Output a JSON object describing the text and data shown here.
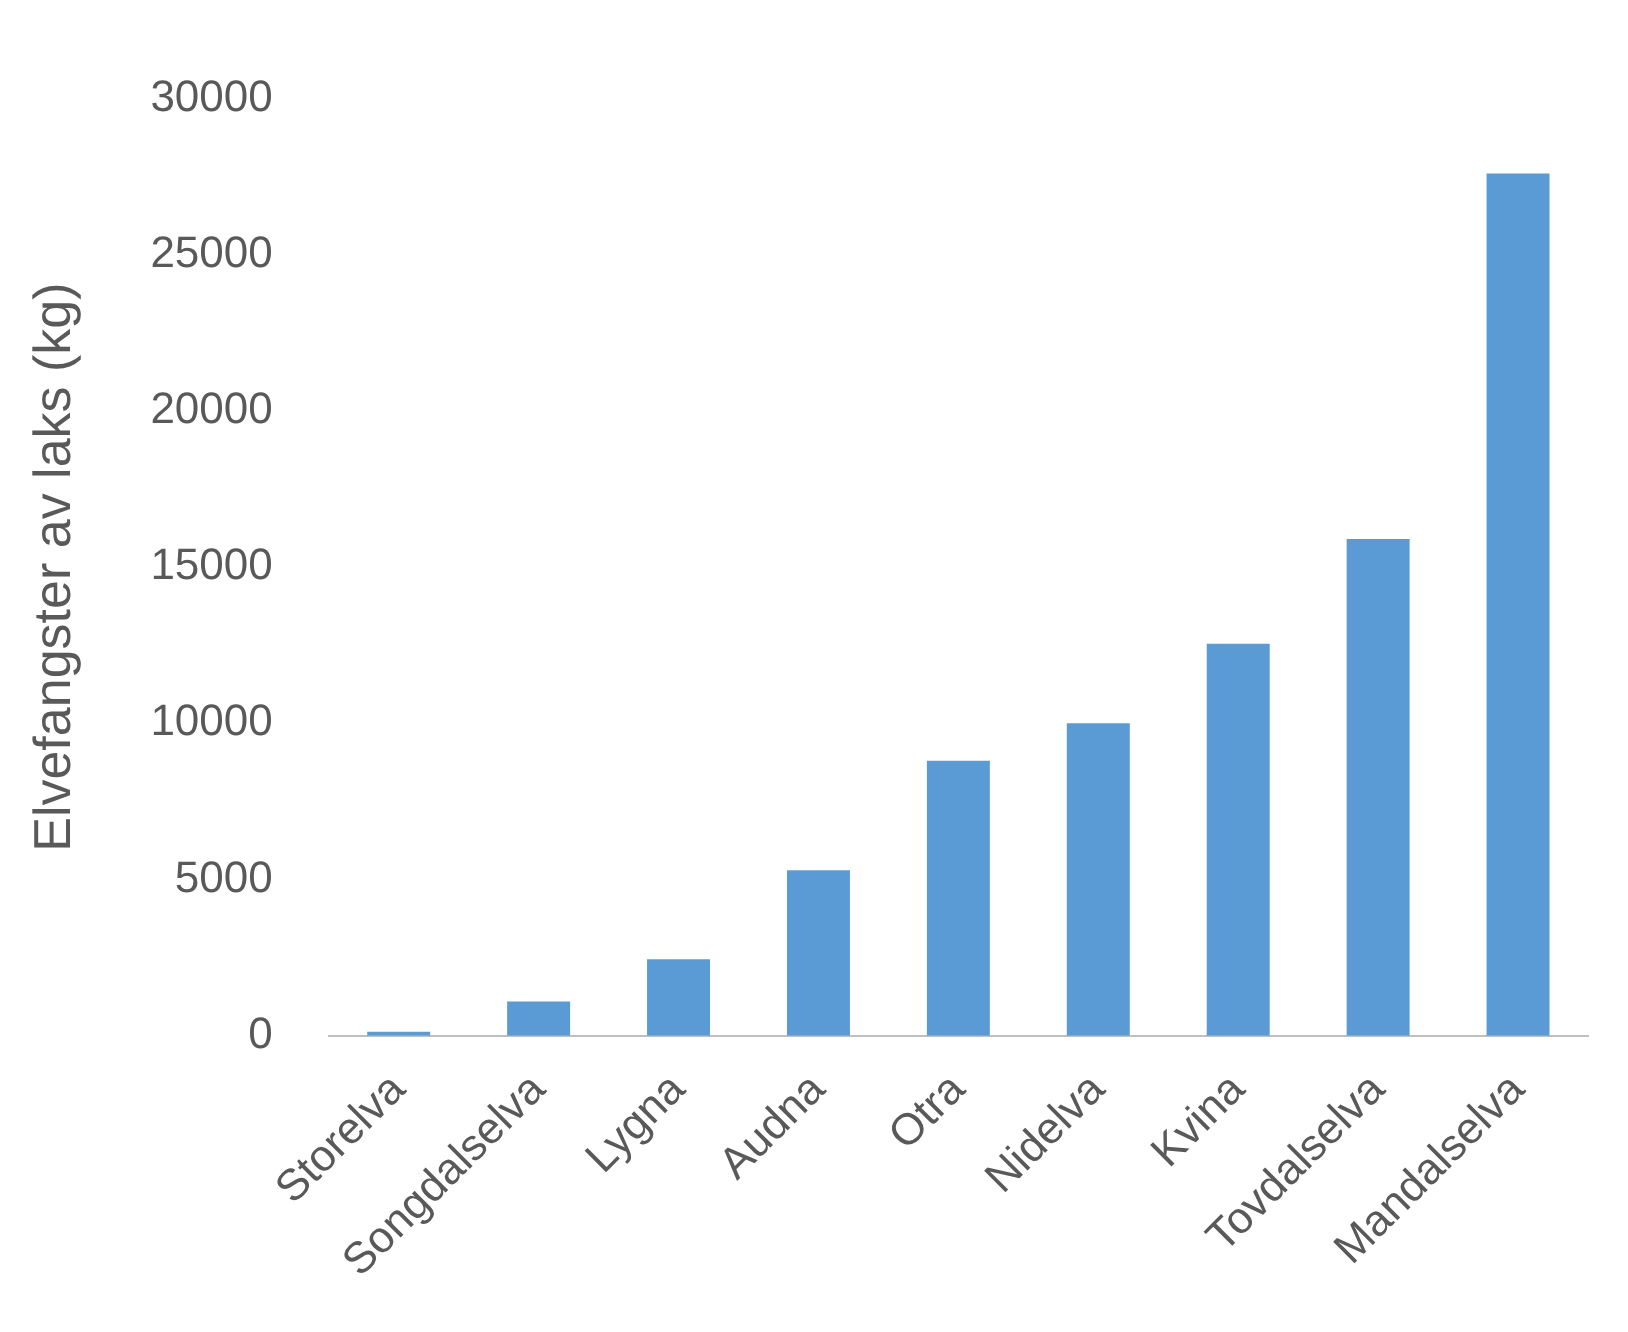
{
  "chart_data": {
    "type": "bar",
    "ylabel": "Elvefangster av laks (kg)",
    "categories": [
      "Storelva",
      "Songdalselva",
      "Lygna",
      "Audna",
      "Otra",
      "Nidelva",
      "Kvina",
      "Tovdalselva",
      "Mandalselva"
    ],
    "values": [
      130,
      1100,
      2450,
      5300,
      8800,
      10000,
      12550,
      15900,
      27600
    ],
    "color": "#5b9bd5",
    "ylim": [
      0,
      30000
    ],
    "yticks": [
      0,
      5000,
      10000,
      15000,
      20000,
      25000,
      30000
    ],
    "grid": false,
    "legend": false
  }
}
